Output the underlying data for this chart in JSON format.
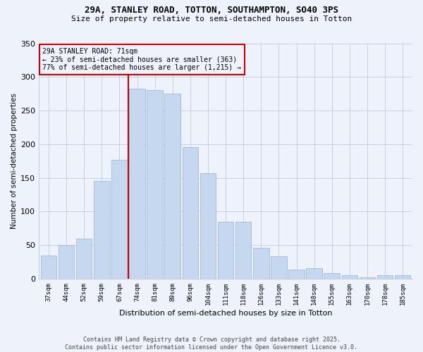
{
  "title_line1": "29A, STANLEY ROAD, TOTTON, SOUTHAMPTON, SO40 3PS",
  "title_line2": "Size of property relative to semi-detached houses in Totton",
  "xlabel": "Distribution of semi-detached houses by size in Totton",
  "ylabel": "Number of semi-detached properties",
  "footer_line1": "Contains HM Land Registry data © Crown copyright and database right 2025.",
  "footer_line2": "Contains public sector information licensed under the Open Government Licence v3.0.",
  "categories": [
    "37sqm",
    "44sqm",
    "52sqm",
    "59sqm",
    "67sqm",
    "74sqm",
    "81sqm",
    "89sqm",
    "96sqm",
    "104sqm",
    "111sqm",
    "118sqm",
    "126sqm",
    "133sqm",
    "141sqm",
    "148sqm",
    "155sqm",
    "163sqm",
    "170sqm",
    "178sqm",
    "185sqm"
  ],
  "values": [
    35,
    50,
    60,
    145,
    177,
    283,
    280,
    275,
    196,
    157,
    85,
    85,
    46,
    33,
    14,
    16,
    8,
    5,
    2,
    5,
    5
  ],
  "bar_color": "#c5d8f0",
  "bar_edge_color": "#a0b8d8",
  "property_label": "29A STANLEY ROAD: 71sqm",
  "pct_smaller": 23,
  "pct_larger": 77,
  "count_smaller": 363,
  "count_larger": 1215,
  "vline_color": "#cc0000",
  "vline_position": 4.5,
  "annotation_box_edge_color": "#cc0000",
  "background_color": "#eef2fb",
  "ylim": [
    0,
    350
  ],
  "yticks": [
    0,
    50,
    100,
    150,
    200,
    250,
    300,
    350
  ]
}
